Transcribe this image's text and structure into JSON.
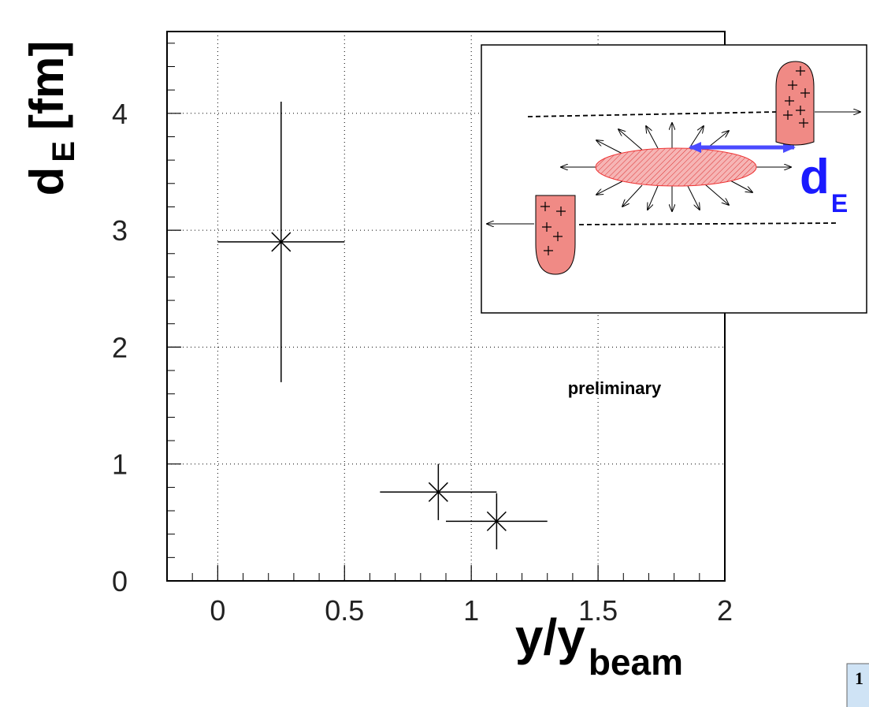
{
  "chart_data": {
    "type": "scatter",
    "x_label": {
      "main": "y/y",
      "sub": "beam"
    },
    "y_label": {
      "main": "d",
      "sub": "E",
      "unit": "[fm]"
    },
    "annotation": "preliminary",
    "x": [
      0.25,
      0.87,
      1.1
    ],
    "y": [
      2.9,
      0.76,
      0.51
    ],
    "xerr": [
      0.25,
      0.23,
      0.2
    ],
    "yerr": [
      1.2,
      0.24,
      0.24
    ],
    "color": "#000000",
    "xlim": [
      -0.2,
      2
    ],
    "ylim": [
      0,
      4.7
    ],
    "xticks": [
      0,
      0.5,
      1,
      1.5,
      2
    ],
    "yticks": [
      0,
      1,
      2,
      3,
      4
    ],
    "xminorticks": [
      -0.1,
      0.1,
      0.2,
      0.3,
      0.4,
      0.6,
      0.7,
      0.8,
      0.9,
      1.1,
      1.2,
      1.3,
      1.4,
      1.6,
      1.7,
      1.8,
      1.9
    ],
    "yminorticks": [
      0.2,
      0.4,
      0.6,
      0.8,
      1.2,
      1.4,
      1.6,
      1.8,
      2.2,
      2.4,
      2.6,
      2.8,
      3.2,
      3.4,
      3.6,
      3.8,
      4.2,
      4.4,
      4.6
    ],
    "grid": true
  },
  "inset": {
    "label": {
      "main": "d",
      "sub": "E"
    }
  },
  "page_number": "1"
}
